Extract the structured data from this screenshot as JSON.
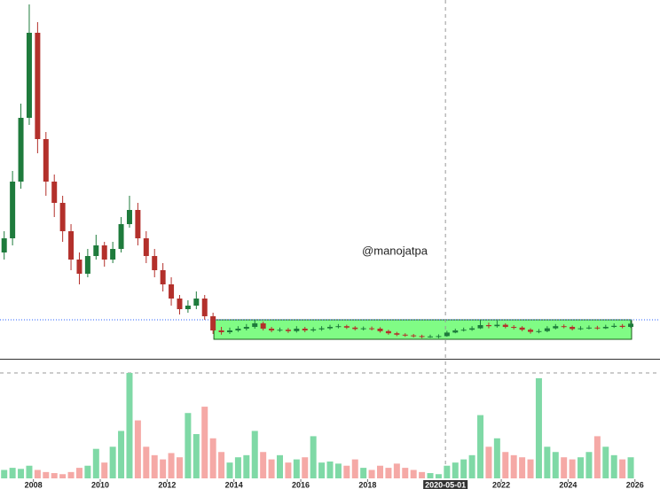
{
  "chart_data": {
    "type": "candlestick",
    "watermark": "@manojatpa",
    "x": [
      2007.125,
      2007.375,
      2007.625,
      2007.875,
      2008.125,
      2008.375,
      2008.625,
      2008.875,
      2009.125,
      2009.375,
      2009.625,
      2009.875,
      2010.125,
      2010.375,
      2010.625,
      2010.875,
      2011.125,
      2011.375,
      2011.625,
      2011.875,
      2012.125,
      2012.375,
      2012.625,
      2012.875,
      2013.125,
      2013.375,
      2013.625,
      2013.875,
      2014.125,
      2014.375,
      2014.625,
      2014.875,
      2015.125,
      2015.375,
      2015.625,
      2015.875,
      2016.125,
      2016.375,
      2016.625,
      2016.875,
      2017.125,
      2017.375,
      2017.625,
      2017.875,
      2018.125,
      2018.375,
      2018.625,
      2018.875,
      2019.125,
      2019.375,
      2019.625,
      2019.875,
      2020.125,
      2020.375,
      2020.625,
      2020.875,
      2021.125,
      2021.375,
      2021.625,
      2021.875,
      2022.125,
      2022.375,
      2022.625,
      2022.875,
      2023.125,
      2023.375,
      2023.625,
      2023.875,
      2024.125,
      2024.375,
      2024.625,
      2024.875,
      2025.125,
      2025.375,
      2025.625,
      2025.875
    ],
    "open": [
      30,
      34,
      50,
      68,
      92,
      62,
      50,
      44,
      36,
      28,
      24,
      29,
      32,
      28,
      31,
      38,
      42,
      34,
      29,
      25,
      21,
      17,
      14,
      15,
      17,
      12,
      8,
      7.5,
      8,
      8.5,
      9,
      10,
      8.5,
      8,
      8.2,
      7.8,
      8.5,
      8,
      8.3,
      8.6,
      9,
      9.2,
      8.8,
      8.4,
      8.6,
      8.5,
      7.8,
      7.2,
      6.8,
      6.6,
      6.4,
      6.2,
      6.3,
      6.4,
      7.4,
      8,
      8.2,
      8.6,
      9.5,
      9.2,
      9.6,
      9,
      8.8,
      8.2,
      7.6,
      7.8,
      8.6,
      9.2,
      9,
      8.4,
      8.6,
      8.8,
      8.6,
      9,
      9.3,
      9
    ],
    "high": [
      36,
      53,
      72,
      100,
      95,
      64,
      52,
      46,
      38,
      30,
      31,
      35,
      33,
      33,
      40,
      46,
      44,
      36,
      31,
      27,
      23,
      18,
      16.5,
      19,
      18,
      13,
      9,
      8.8,
      9.2,
      9.8,
      11,
      10.5,
      9,
      8.8,
      8.7,
      9.2,
      9,
      8.9,
      9.2,
      9.6,
      9.8,
      9.6,
      9.2,
      9.1,
      9.1,
      8.9,
      8.2,
      7.6,
      7.2,
      7,
      6.8,
      6.8,
      6.9,
      7.9,
      8.5,
      8.8,
      9.2,
      11,
      10.2,
      10.8,
      10,
      9.5,
      9.2,
      8.6,
      8.4,
      9.2,
      9.8,
      9.7,
      9.4,
      9.2,
      9.4,
      9.3,
      9.6,
      10,
      9.8,
      10.8
    ],
    "low": [
      28,
      32,
      48,
      66,
      58,
      46,
      40,
      33,
      25,
      21,
      23,
      28,
      26,
      27,
      30,
      37,
      32,
      27,
      23,
      19,
      15,
      12.5,
      13,
      14,
      11,
      7,
      6.8,
      7,
      7.6,
      8,
      8.5,
      8,
      7.5,
      7.6,
      7.3,
      7.4,
      7.5,
      7.6,
      7.9,
      8.2,
      8.6,
      8.4,
      8,
      8,
      8,
      7.4,
      6.8,
      6.4,
      6.2,
      6,
      5.8,
      5.9,
      5.8,
      6.2,
      7.2,
      7.7,
      7.9,
      8.4,
      8.6,
      8.8,
      8.6,
      8.3,
      7.8,
      7.1,
      7.2,
      7.5,
      8.3,
      8.6,
      8,
      8.1,
      8.3,
      8.2,
      8.4,
      8.7,
      8.6,
      8.7
    ],
    "close": [
      34,
      50,
      68,
      92,
      62,
      50,
      44,
      36,
      28,
      24,
      29,
      32,
      28,
      31,
      38,
      42,
      34,
      29,
      25,
      21,
      17,
      14,
      15,
      17,
      12,
      8,
      7.5,
      8,
      8.5,
      9,
      10,
      8.5,
      8,
      8.2,
      7.8,
      8.5,
      8,
      8.3,
      8.6,
      9,
      9.2,
      8.8,
      8.4,
      8.6,
      8.5,
      7.8,
      7.2,
      6.8,
      6.6,
      6.4,
      6.2,
      6.3,
      6.4,
      7.4,
      8,
      8.2,
      8.6,
      9.5,
      9.2,
      9.6,
      9,
      8.8,
      8.2,
      7.6,
      7.8,
      8.6,
      9.2,
      9,
      8.4,
      8.6,
      8.8,
      8.6,
      9,
      9.3,
      9,
      9.9
    ],
    "volume": [
      8,
      10,
      9,
      12,
      8,
      6,
      5,
      4,
      6,
      10,
      12,
      28,
      15,
      30,
      45,
      100,
      55,
      30,
      22,
      18,
      24,
      20,
      62,
      42,
      68,
      38,
      25,
      15,
      20,
      22,
      45,
      25,
      18,
      22,
      15,
      18,
      20,
      40,
      15,
      16,
      14,
      12,
      18,
      10,
      8,
      12,
      10,
      14,
      10,
      8,
      6,
      5,
      4,
      12,
      15,
      18,
      22,
      60,
      30,
      38,
      25,
      22,
      20,
      18,
      95,
      30,
      25,
      20,
      18,
      20,
      25,
      40,
      30,
      22,
      18,
      20
    ],
    "up_color": "#1e7b3c",
    "down_color": "#b3302b",
    "volume_up_color": "#7fd9a6",
    "volume_down_color": "#f5a9a6",
    "xlim": [
      2007,
      2026.75
    ],
    "xticks": [
      2008,
      2010,
      2012,
      2014,
      2016,
      2018,
      2022,
      2024,
      2026
    ],
    "ylim": [
      0,
      100
    ],
    "volume_lim": [
      0,
      100
    ],
    "price_line": 11,
    "crosshair_x": {
      "value": 2020.33,
      "label": "2020-05-01"
    },
    "box": {
      "x": [
        2013.4,
        2025.9
      ],
      "y": [
        5.5,
        11
      ],
      "color": "#80fc85"
    }
  }
}
